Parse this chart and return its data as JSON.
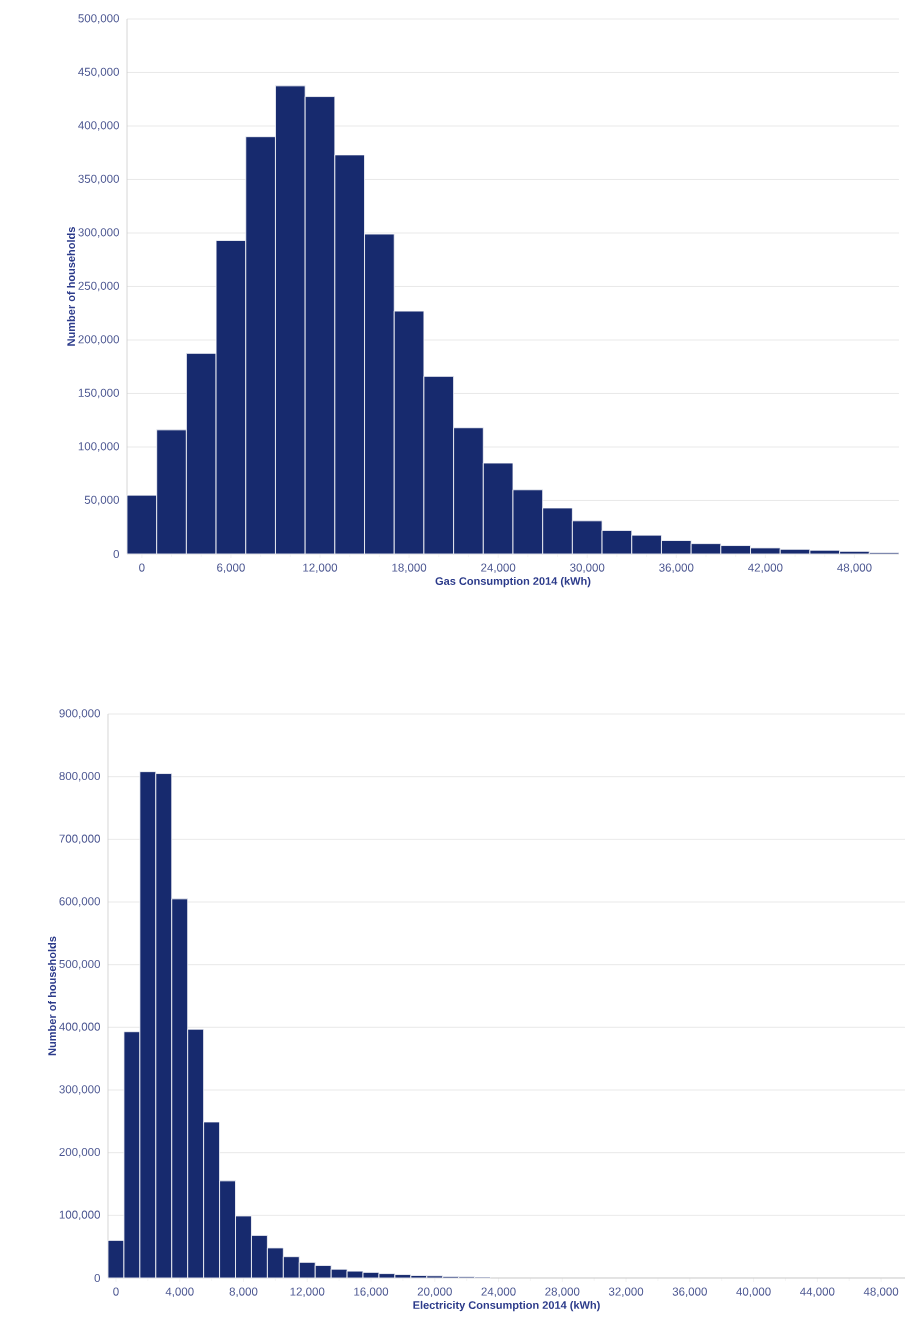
{
  "chart_data": [
    {
      "type": "histogram",
      "xlabel": "Gas Consumption 2014 (kWh)",
      "ylabel": "Number of households",
      "color": "#172a6e",
      "bins": [
        -1000,
        1000,
        3000,
        5000,
        7000,
        9000,
        11000,
        13000,
        15000,
        17000,
        19000,
        21000,
        23000,
        25000,
        27000,
        29000,
        31000,
        33000,
        35000,
        37000,
        39000,
        41000,
        43000,
        45000,
        47000,
        49000,
        51000
      ],
      "values": [
        55000,
        116000,
        187500,
        293000,
        390000,
        437500,
        427500,
        373000,
        299000,
        227000,
        166000,
        118000,
        85000,
        60000,
        43000,
        31000,
        22000,
        17600,
        12600,
        9700,
        7900,
        5700,
        4400,
        3500,
        2500,
        1300
      ],
      "xlim": [
        -1000,
        51000
      ],
      "ylim": [
        0,
        500000
      ],
      "xticks": [
        0,
        {
          "value": 6000,
          "label": "6,000"
        },
        {
          "value": 12000,
          "label": "12,000"
        },
        {
          "value": 18000,
          "label": "18,000"
        },
        {
          "value": 24000,
          "label": "24,000"
        },
        {
          "value": 30000,
          "label": "30,000"
        },
        {
          "value": 36000,
          "label": "36,000"
        },
        {
          "value": 42000,
          "label": "42,000"
        },
        {
          "value": 48000,
          "label": "48,000"
        }
      ],
      "yticks": [
        0,
        {
          "value": 50000,
          "label": "50,000"
        },
        {
          "value": 100000,
          "label": "100,000"
        },
        {
          "value": 150000,
          "label": "150,000"
        },
        {
          "value": 200000,
          "label": "200,000"
        },
        {
          "value": 250000,
          "label": "250,000"
        },
        {
          "value": 300000,
          "label": "300,000"
        },
        {
          "value": 350000,
          "label": "350,000"
        },
        {
          "value": 400000,
          "label": "400,000"
        },
        {
          "value": 450000,
          "label": "450,000"
        },
        {
          "value": 500000,
          "label": "500,000"
        }
      ],
      "grid": "y"
    },
    {
      "type": "histogram",
      "xlabel": "Electricity Consumption 2014 (kWh)",
      "ylabel": "Number of households",
      "color": "#172a6e",
      "bins": [
        -500,
        500,
        1500,
        2500,
        3500,
        4500,
        5500,
        6500,
        7500,
        8500,
        9500,
        10500,
        11500,
        12500,
        13500,
        14500,
        15500,
        16500,
        17500,
        18500,
        19500,
        20500,
        21500,
        22500,
        23500
      ],
      "values": [
        60000,
        393000,
        808000,
        805000,
        605000,
        397000,
        249000,
        155000,
        99000,
        68000,
        48000,
        34000,
        25000,
        20000,
        14000,
        11000,
        9000,
        7000,
        5500,
        4000,
        3500,
        2500,
        2000,
        1500
      ],
      "xlim": [
        -500,
        49500
      ],
      "ylim": [
        0,
        900000
      ],
      "xticks": [
        0,
        {
          "value": 4000,
          "label": "4,000"
        },
        {
          "value": 8000,
          "label": "8,000"
        },
        {
          "value": 12000,
          "label": "12,000"
        },
        {
          "value": 16000,
          "label": "16,000"
        },
        {
          "value": 20000,
          "label": "20,000"
        },
        {
          "value": 24000,
          "label": "24,000"
        },
        {
          "value": 28000,
          "label": "28,000"
        },
        {
          "value": 32000,
          "label": "32,000"
        },
        {
          "value": 36000,
          "label": "36,000"
        },
        {
          "value": 40000,
          "label": "40,000"
        },
        {
          "value": 44000,
          "label": "44,000"
        },
        {
          "value": 48000,
          "label": "48,000"
        }
      ],
      "yticks": [
        0,
        {
          "value": 100000,
          "label": "100,000"
        },
        {
          "value": 200000,
          "label": "200,000"
        },
        {
          "value": 300000,
          "label": "300,000"
        },
        {
          "value": 400000,
          "label": "400,000"
        },
        {
          "value": 500000,
          "label": "500,000"
        },
        {
          "value": 600000,
          "label": "600,000"
        },
        {
          "value": 700000,
          "label": "700,000"
        },
        {
          "value": 800000,
          "label": "800,000"
        },
        {
          "value": 900000,
          "label": "900,000"
        }
      ],
      "grid": "y"
    }
  ]
}
